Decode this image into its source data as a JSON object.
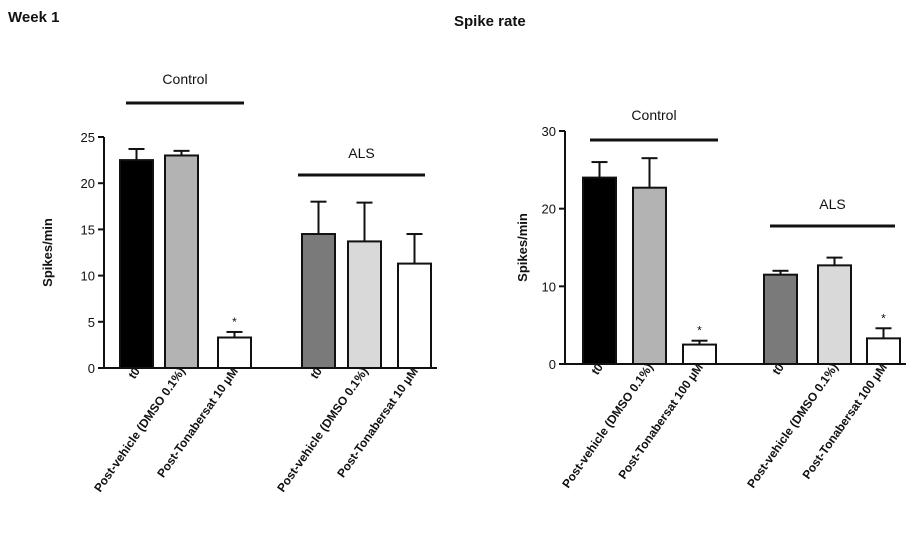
{
  "header": {
    "week": "Week 1",
    "title": "Spike rate"
  },
  "chart_data": [
    {
      "type": "bar",
      "ylabel": "Spikes/min",
      "ylim": [
        0,
        25
      ],
      "yticks": [
        0,
        5,
        10,
        15,
        20,
        25
      ],
      "groups": [
        {
          "label": "Control",
          "n": 3
        },
        {
          "label": "ALS",
          "n": 3
        }
      ],
      "categories": [
        "t0",
        "Post-vehicle (DMSO 0.1%)",
        "Post-Tonabersat 10 μM",
        "t0",
        "Post-vehicle (DMSO 0.1%)",
        "Post-Tonabersat 10 μM"
      ],
      "values": [
        22.5,
        23.0,
        3.3,
        14.5,
        13.7,
        11.3
      ],
      "errors": [
        1.2,
        0.5,
        0.6,
        3.5,
        4.2,
        3.2
      ],
      "markers": [
        "",
        "",
        "*",
        "",
        "",
        ""
      ],
      "fills": [
        "#000000",
        "#b3b3b3",
        "#ffffff",
        "#7a7a7a",
        "#d9d9d9",
        "#ffffff"
      ]
    },
    {
      "type": "bar",
      "ylabel": "Spikes/min",
      "ylim": [
        0,
        30
      ],
      "yticks": [
        0,
        10,
        20,
        30
      ],
      "groups": [
        {
          "label": "Control",
          "n": 3
        },
        {
          "label": "ALS",
          "n": 3
        }
      ],
      "categories": [
        "t0",
        "Post-vehicle (DMSO 0.1%)",
        "Post-Tonabersat 100 μM",
        "t0",
        "Post-vehicle (DMSO 0.1%)",
        "Post-Tonabersat 100 μM"
      ],
      "values": [
        24.0,
        22.7,
        2.5,
        11.5,
        12.7,
        3.3
      ],
      "errors": [
        2.0,
        3.8,
        0.5,
        0.5,
        1.0,
        1.3
      ],
      "markers": [
        "",
        "",
        "*",
        "",
        "",
        "*"
      ],
      "fills": [
        "#000000",
        "#b3b3b3",
        "#ffffff",
        "#7a7a7a",
        "#d9d9d9",
        "#ffffff"
      ]
    }
  ]
}
